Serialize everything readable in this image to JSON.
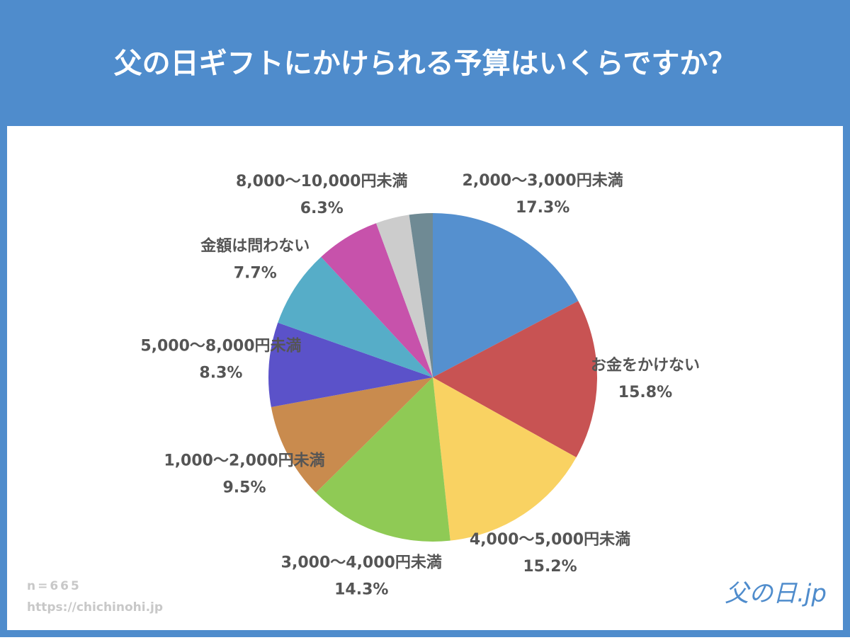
{
  "title": "父の日ギフトにかけられる予算はいくらですか？",
  "chart_data": {
    "type": "pie",
    "categories": [
      "2,000〜3,000円未満",
      "お金をかけない",
      "4,000〜5,000円未満",
      "3,000〜4,000円未満",
      "1,000〜2,000円未満",
      "5,000〜8,000円未満",
      "金額は問わない",
      "8,000〜10,000円未満",
      null,
      null
    ],
    "values": [
      17.3,
      15.8,
      15.2,
      14.3,
      9.5,
      8.3,
      7.7,
      6.3,
      3.3,
      2.3
    ],
    "value_labels": [
      "17.3%",
      "15.8%",
      "15.2%",
      "14.3%",
      "9.5%",
      "8.3%",
      "7.7%",
      "6.3%",
      null,
      null
    ],
    "colors": [
      "#5590cf",
      "#c85353",
      "#f9d262",
      "#8fca55",
      "#c98b4e",
      "#5b52c9",
      "#56adc8",
      "#c752ab",
      "#cccccc",
      "#6f8a94"
    ]
  },
  "footer": {
    "sample": "n=665",
    "url": "https://chichinohi.jp",
    "logo": "父の日.jp"
  }
}
